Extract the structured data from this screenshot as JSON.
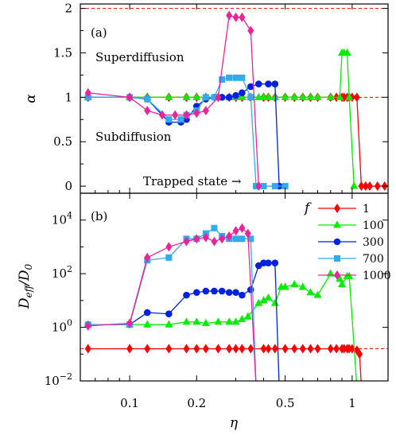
{
  "chart_data": [
    {
      "panel_label": "(a)",
      "type": "line",
      "xscale": "log",
      "xlim": [
        0.06,
        1.45
      ],
      "ylim": [
        -0.08,
        2.05
      ],
      "ylabel": "α",
      "xticks": [
        0.1,
        0.2,
        0.5,
        1
      ],
      "yticks": [
        0,
        0.5,
        1,
        1.5,
        2
      ],
      "ytick_labels": [
        "0",
        "0.5",
        "1",
        "1.5",
        "2"
      ],
      "reference_lines": [
        1,
        2
      ],
      "annotations": [
        "Superdiffusion",
        "Subdiffusion",
        "Trapped state →"
      ],
      "series": [
        {
          "f": "1",
          "color": "#ff0000",
          "marker": "diamond",
          "x": [
            0.065,
            0.1,
            0.12,
            0.15,
            0.18,
            0.2,
            0.22,
            0.25,
            0.28,
            0.3,
            0.32,
            0.35,
            0.4,
            0.42,
            0.45,
            0.5,
            0.55,
            0.6,
            0.65,
            0.7,
            0.8,
            0.85,
            0.9,
            0.92,
            0.95,
            0.97,
            1.0,
            1.05,
            1.1,
            1.15,
            1.2,
            1.3,
            1.4
          ],
          "y": [
            1.0,
            1.0,
            1.0,
            1.0,
            1.0,
            1.0,
            1.0,
            1.0,
            1.0,
            1.0,
            1.0,
            1.0,
            1.0,
            1.0,
            1.0,
            1.0,
            1.0,
            1.0,
            1.0,
            1.0,
            1.0,
            1.0,
            1.0,
            1.0,
            1.0,
            1.0,
            1.0,
            1.0,
            0.0,
            0.0,
            0.0,
            0.0,
            0.0
          ]
        },
        {
          "f": "100",
          "color": "#00ee00",
          "marker": "triangle",
          "x": [
            0.065,
            0.1,
            0.12,
            0.15,
            0.18,
            0.2,
            0.22,
            0.25,
            0.28,
            0.3,
            0.32,
            0.35,
            0.38,
            0.4,
            0.42,
            0.45,
            0.5,
            0.55,
            0.6,
            0.65,
            0.7,
            0.8,
            0.88,
            0.9,
            0.92,
            0.95,
            0.97,
            1.02
          ],
          "y": [
            1.0,
            1.0,
            1.0,
            1.0,
            1.0,
            1.0,
            1.0,
            1.0,
            1.0,
            1.0,
            1.0,
            1.0,
            1.0,
            1.0,
            1.0,
            1.0,
            1.0,
            1.0,
            1.0,
            1.0,
            1.0,
            1.0,
            1.0,
            1.5,
            1.5,
            1.5,
            1.0,
            0.0
          ]
        },
        {
          "f": "300",
          "color": "#0022dd",
          "marker": "circle",
          "x": [
            0.065,
            0.1,
            0.12,
            0.15,
            0.17,
            0.18,
            0.2,
            0.22,
            0.24,
            0.26,
            0.28,
            0.3,
            0.32,
            0.35,
            0.38,
            0.42,
            0.45,
            0.47
          ],
          "y": [
            1.0,
            1.0,
            0.98,
            0.72,
            0.72,
            0.75,
            0.9,
            0.98,
            1.0,
            1.0,
            1.0,
            1.02,
            1.05,
            1.12,
            1.15,
            1.15,
            1.15,
            0.0
          ]
        },
        {
          "f": "700",
          "color": "#33aaee",
          "marker": "square",
          "x": [
            0.065,
            0.1,
            0.12,
            0.15,
            0.17,
            0.18,
            0.2,
            0.22,
            0.24,
            0.26,
            0.28,
            0.3,
            0.32,
            0.35,
            0.37,
            0.4,
            0.45,
            0.5
          ],
          "y": [
            1.0,
            1.0,
            0.98,
            0.75,
            0.75,
            0.8,
            0.85,
            1.0,
            1.0,
            1.2,
            1.22,
            1.22,
            1.22,
            1.0,
            0.0,
            0.0,
            0.0,
            0.0
          ]
        },
        {
          "f": "1000",
          "color": "#ee2299",
          "marker": "diamond",
          "x": [
            0.065,
            0.1,
            0.12,
            0.14,
            0.16,
            0.18,
            0.2,
            0.22,
            0.25,
            0.28,
            0.3,
            0.32,
            0.35,
            0.38
          ],
          "y": [
            1.05,
            1.0,
            0.85,
            0.8,
            0.8,
            0.8,
            0.82,
            0.85,
            1.0,
            1.92,
            1.9,
            1.9,
            1.75,
            0.0
          ]
        }
      ]
    },
    {
      "panel_label": "(b)",
      "type": "line",
      "xscale": "log",
      "yscale": "log",
      "xlim": [
        0.06,
        1.45
      ],
      "ylim_log10": [
        -2,
        5
      ],
      "xlabel": "η",
      "ylabel": "D_eff / D_0",
      "xticks": [
        0.1,
        0.2,
        0.5,
        1
      ],
      "xtick_labels": [
        "0.1",
        "0.2",
        "0.5",
        "1"
      ],
      "ytick_exponents": [
        -2,
        0,
        2,
        4
      ],
      "reference_line_log10": -0.8,
      "legend_title": "f",
      "legend": [
        "1",
        "100",
        "300",
        "700",
        "1000"
      ],
      "legend_placement": "top-right",
      "series": [
        {
          "f": "1",
          "color": "#ff0000",
          "marker": "diamond",
          "x": [
            0.065,
            0.1,
            0.12,
            0.15,
            0.18,
            0.2,
            0.22,
            0.25,
            0.28,
            0.3,
            0.32,
            0.35,
            0.4,
            0.42,
            0.45,
            0.5,
            0.55,
            0.6,
            0.65,
            0.7,
            0.8,
            0.85,
            0.9,
            0.92,
            0.95,
            0.97,
            1.0,
            1.05,
            1.08,
            1.1
          ],
          "log10y": [
            -0.8,
            -0.8,
            -0.8,
            -0.8,
            -0.8,
            -0.8,
            -0.8,
            -0.8,
            -0.8,
            -0.8,
            -0.8,
            -0.8,
            -0.8,
            -0.8,
            -0.8,
            -0.8,
            -0.8,
            -0.8,
            -0.8,
            -0.8,
            -0.8,
            -0.8,
            -0.8,
            -0.8,
            -0.8,
            -0.8,
            -0.8,
            -0.85,
            -1.0,
            -2.2
          ]
        },
        {
          "f": "100",
          "color": "#00ee00",
          "marker": "triangle",
          "x": [
            0.065,
            0.1,
            0.12,
            0.15,
            0.18,
            0.2,
            0.22,
            0.25,
            0.28,
            0.3,
            0.32,
            0.34,
            0.38,
            0.4,
            0.42,
            0.45,
            0.48,
            0.5,
            0.55,
            0.6,
            0.65,
            0.7,
            0.8,
            0.88,
            0.9,
            0.95,
            0.97,
            1.05
          ],
          "log10y": [
            0.1,
            0.1,
            0.1,
            0.1,
            0.2,
            0.2,
            0.15,
            0.2,
            0.2,
            0.2,
            0.3,
            0.4,
            0.9,
            1.0,
            1.1,
            0.9,
            1.5,
            1.5,
            1.6,
            1.5,
            1.3,
            1.2,
            2.0,
            1.8,
            1.6,
            1.9,
            1.9,
            -2.2
          ]
        },
        {
          "f": "300",
          "color": "#0022dd",
          "marker": "circle",
          "x": [
            0.065,
            0.1,
            0.12,
            0.15,
            0.18,
            0.2,
            0.22,
            0.24,
            0.26,
            0.28,
            0.3,
            0.32,
            0.35,
            0.38,
            0.4,
            0.42,
            0.45,
            0.47
          ],
          "log10y": [
            0.1,
            0.1,
            0.55,
            0.5,
            1.2,
            1.3,
            1.35,
            1.35,
            1.35,
            1.3,
            1.3,
            1.2,
            1.4,
            2.3,
            2.4,
            2.4,
            2.4,
            -2.2
          ]
        },
        {
          "f": "700",
          "color": "#33aaee",
          "marker": "square",
          "x": [
            0.065,
            0.1,
            0.12,
            0.15,
            0.18,
            0.2,
            0.22,
            0.24,
            0.26,
            0.28,
            0.3,
            0.32,
            0.35,
            0.37
          ],
          "log10y": [
            0.1,
            0.1,
            2.5,
            2.6,
            3.3,
            3.3,
            3.5,
            3.7,
            3.4,
            3.3,
            3.3,
            3.3,
            3.3,
            -2.2
          ]
        },
        {
          "f": "1000",
          "color": "#ee2299",
          "marker": "diamond",
          "x": [
            0.065,
            0.1,
            0.12,
            0.15,
            0.18,
            0.2,
            0.22,
            0.24,
            0.26,
            0.28,
            0.3,
            0.32,
            0.34,
            0.37
          ],
          "log10y": [
            0.05,
            0.15,
            2.6,
            3.0,
            3.2,
            3.3,
            3.35,
            3.2,
            3.3,
            3.4,
            3.6,
            3.7,
            3.5,
            -2.2
          ]
        }
      ]
    }
  ]
}
